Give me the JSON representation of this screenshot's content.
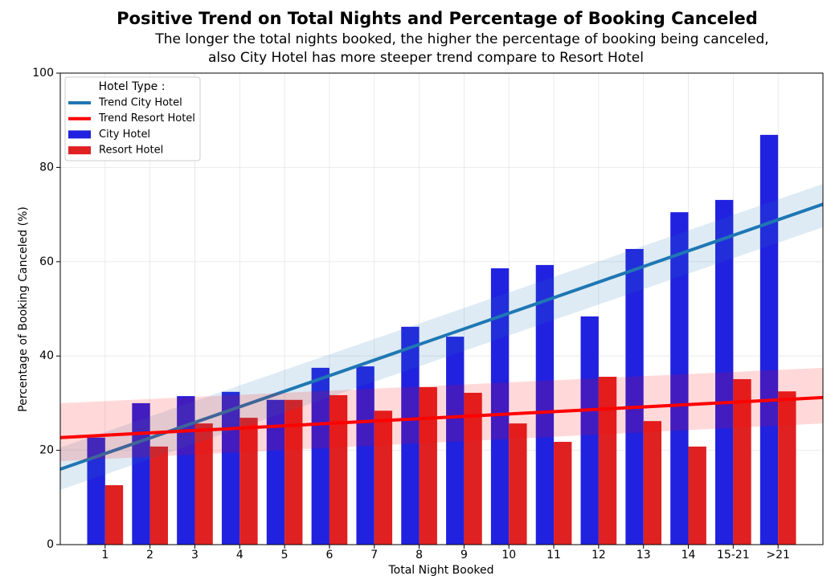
{
  "chart_data": {
    "type": "bar",
    "title": "Positive Trend on Total Nights and Percentage of Booking Canceled",
    "subtitle": [
      "The longer the total nights booked, the higher the percentage of booking being canceled,",
      "also City Hotel has more steeper trend compare to Resort Hotel"
    ],
    "x_label": "Total Night Booked",
    "y_label": "Percentage of Booking Canceled (%)",
    "categories": [
      "1",
      "2",
      "3",
      "4",
      "5",
      "6",
      "7",
      "8",
      "9",
      "10",
      "11",
      "12",
      "13",
      "14",
      "15-21",
      ">21"
    ],
    "series": [
      {
        "name": "City Hotel",
        "color": "#2121e0",
        "values": [
          22.7,
          30.0,
          31.5,
          32.4,
          30.7,
          37.5,
          37.8,
          46.2,
          44.1,
          58.6,
          59.3,
          48.4,
          62.7,
          70.5,
          73.1,
          86.9
        ]
      },
      {
        "name": "Resort Hotel",
        "color": "#e02121",
        "values": [
          12.6,
          20.8,
          25.7,
          26.9,
          30.7,
          31.7,
          28.4,
          33.4,
          32.2,
          25.7,
          21.8,
          35.6,
          26.2,
          20.8,
          35.1,
          32.5
        ]
      }
    ],
    "trends": [
      {
        "name": "Trend City Hotel",
        "color": "#1f77b4",
        "values": [
          16.0,
          72.2
        ],
        "lower": [
          11.6,
          67.3
        ],
        "upper": [
          20.6,
          76.5
        ]
      },
      {
        "name": "Trend Resort Hotel",
        "color": "#ff0000",
        "values": [
          22.7,
          31.2
        ],
        "lower": [
          17.7,
          25.7
        ],
        "upper": [
          30.0,
          37.5
        ]
      }
    ],
    "legend_title": "Hotel Type :",
    "legend_position": "upper left",
    "ylim": [
      0,
      100
    ],
    "yticks": [
      0,
      20,
      40,
      60,
      80,
      100
    ],
    "grid": true
  }
}
